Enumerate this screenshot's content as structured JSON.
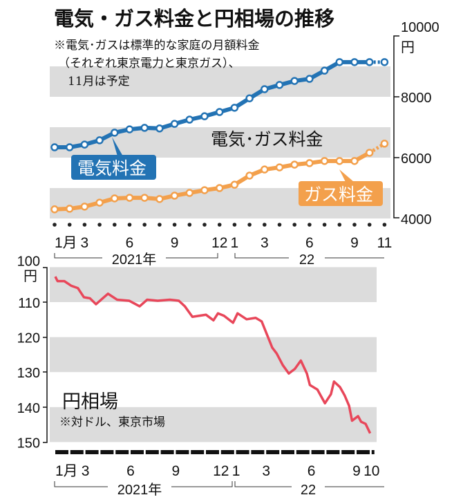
{
  "colors": {
    "electric": "#2373b4",
    "gas": "#f3a04c",
    "yen": "#e8475a",
    "band": "#dcdcdc"
  },
  "chart_data": [
    {
      "type": "line",
      "title": "電気・ガス料金と円相場の推移",
      "note_lines": [
        "※電気･ガスは標準的な家庭の月額料金",
        "（それぞれ東京電力と東京ガス）、",
        "11月は予定"
      ],
      "chart_label": "電気･ガス料金",
      "ylabel": "円",
      "ylim": [
        4000,
        10000
      ],
      "yticks": [
        "10000",
        "8000",
        "6000",
        "4000"
      ],
      "yticks_values": [
        10000,
        8000,
        6000,
        4000
      ],
      "x_months": [
        0,
        1,
        2,
        3,
        4,
        5,
        6,
        7,
        8,
        9,
        10,
        11,
        12,
        13,
        14,
        15,
        16,
        17,
        18,
        19,
        20,
        21,
        22
      ],
      "xtick_labels": [
        {
          "m": 0,
          "t": "1月"
        },
        {
          "m": 2,
          "t": "3"
        },
        {
          "m": 5,
          "t": "6"
        },
        {
          "m": 8,
          "t": "9"
        },
        {
          "m": 11,
          "t": "12"
        },
        {
          "m": 12,
          "t": "1"
        },
        {
          "m": 14,
          "t": "3"
        },
        {
          "m": 17,
          "t": "6"
        },
        {
          "m": 20,
          "t": "9"
        },
        {
          "m": 22,
          "t": "11"
        }
      ],
      "year_labels": [
        "2021年",
        "22"
      ],
      "series": [
        {
          "name": "電気料金",
          "values": [
            6340,
            6340,
            6430,
            6570,
            6820,
            6930,
            6980,
            6960,
            7110,
            7250,
            7360,
            7500,
            7640,
            7950,
            8250,
            8390,
            8520,
            8590,
            8860,
            9140,
            9140,
            9140,
            9140
          ],
          "projected_last": true
        },
        {
          "name": "ガス料金",
          "values": [
            4300,
            4320,
            4390,
            4520,
            4660,
            4680,
            4680,
            4640,
            4750,
            4840,
            4930,
            5000,
            5110,
            5410,
            5610,
            5680,
            5770,
            5820,
            5890,
            5890,
            5890,
            6160,
            6460
          ],
          "projected_last": true
        }
      ]
    },
    {
      "type": "line",
      "title": "円相場",
      "note": "※対ドル、東京市場",
      "ylabel": "円",
      "ylim": [
        100,
        150
      ],
      "y_inverted": true,
      "yticks": [
        "100",
        "110",
        "120",
        "130",
        "140",
        "150"
      ],
      "yticks_values": [
        100,
        110,
        120,
        130,
        140,
        150
      ],
      "xtick_labels": [
        {
          "m": 0,
          "t": "1月"
        },
        {
          "m": 2,
          "t": "3"
        },
        {
          "m": 5,
          "t": "6"
        },
        {
          "m": 8,
          "t": "9"
        },
        {
          "m": 11,
          "t": "12"
        },
        {
          "m": 12,
          "t": "1"
        },
        {
          "m": 14,
          "t": "3"
        },
        {
          "m": 17,
          "t": "6"
        },
        {
          "m": 20,
          "t": "9"
        },
        {
          "m": 21,
          "t": "10"
        }
      ],
      "year_labels": [
        "2021年",
        "22"
      ],
      "series": [
        {
          "name": "円相場",
          "x": [
            0,
            0.15,
            0.6,
            1.05,
            1.5,
            1.9,
            2.3,
            2.7,
            3.5,
            4.1,
            4.9,
            5.6,
            6.1,
            6.8,
            7.6,
            8.2,
            8.6,
            9.1,
            10,
            10.5,
            10.8,
            11.2,
            11.8,
            12.1,
            12.7,
            13.3,
            13.7,
            14.1,
            14.4,
            14.7,
            15.1,
            15.5,
            15.9,
            16.3,
            16.7,
            16.9,
            17.4,
            17.9,
            18.3,
            18.5,
            18.9,
            19.2,
            19.5,
            19.7,
            20.1,
            20.3,
            20.6,
            20.9
          ],
          "values": [
            102.7,
            104,
            104,
            105.3,
            106,
            108.6,
            108.9,
            110.6,
            107.6,
            109.3,
            109.6,
            111.2,
            109.3,
            109.6,
            109.3,
            109.6,
            111.2,
            114.2,
            113.6,
            115.2,
            113.2,
            113.9,
            115.9,
            113.2,
            114.9,
            114.5,
            115.5,
            119.8,
            123,
            124.7,
            128,
            130.4,
            129.1,
            126.7,
            130.4,
            133.7,
            135,
            138.9,
            136.3,
            132.7,
            134.3,
            136.6,
            139.6,
            143.9,
            142.6,
            144.2,
            144.8,
            147.5
          ]
        }
      ]
    }
  ]
}
